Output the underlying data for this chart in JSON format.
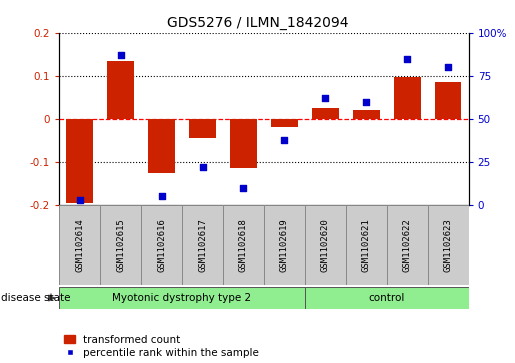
{
  "title": "GDS5276 / ILMN_1842094",
  "samples": [
    "GSM1102614",
    "GSM1102615",
    "GSM1102616",
    "GSM1102617",
    "GSM1102618",
    "GSM1102619",
    "GSM1102620",
    "GSM1102621",
    "GSM1102622",
    "GSM1102623"
  ],
  "transformed_count": [
    -0.195,
    0.135,
    -0.125,
    -0.045,
    -0.115,
    -0.018,
    0.025,
    0.02,
    0.098,
    0.085
  ],
  "percentile_rank": [
    3,
    87,
    5,
    22,
    10,
    38,
    62,
    60,
    85,
    80
  ],
  "group1_label": "Myotonic dystrophy type 2",
  "group1_count": 6,
  "group2_label": "control",
  "group2_count": 4,
  "group_color": "#90EE90",
  "ylim_left": [
    -0.2,
    0.2
  ],
  "ylim_right": [
    0,
    100
  ],
  "yticks_left": [
    -0.2,
    -0.1,
    0.0,
    0.1,
    0.2
  ],
  "yticks_right": [
    0,
    25,
    50,
    75,
    100
  ],
  "bar_color": "#CC2200",
  "dot_color": "#0000CC",
  "label_bg": "#CCCCCC",
  "label_edge": "#888888",
  "disease_state_label": "disease state",
  "legend_bar": "transformed count",
  "legend_dot": "percentile rank within the sample",
  "title_fontsize": 10,
  "axis_fontsize": 7.5,
  "label_fontsize": 6.5,
  "disease_fontsize": 7.5,
  "legend_fontsize": 7.5
}
